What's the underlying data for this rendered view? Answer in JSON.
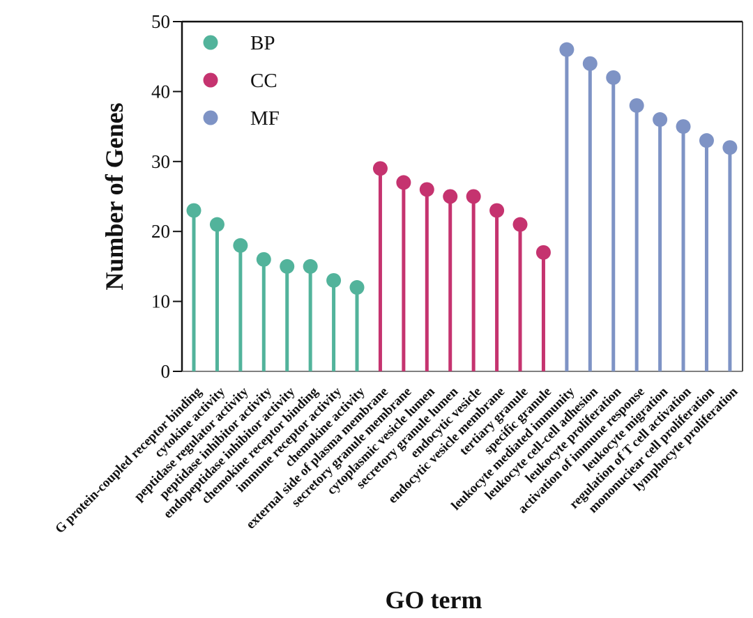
{
  "chart_data": {
    "type": "lollipop",
    "title": "",
    "xlabel": "GO term",
    "ylabel": "Number of Genes",
    "ylim": [
      0,
      50
    ],
    "yticks": [
      0,
      10,
      20,
      30,
      40,
      50
    ],
    "grid": false,
    "legend_position": "top-left",
    "categories": [
      "G protein-coupled receptor binding",
      "cytokine activity",
      "peptidase regulator activity",
      "peptidase inhibitor activity",
      "endopeptidase inhibitor activity",
      "chemokine receptor binding",
      "immune receptor activity",
      "chemokine activity",
      "external side of plasma membrane",
      "secretory granule membrane",
      "cytoplasmic vesicle lumen",
      "secretory granule lumen",
      "endocytic vesicle",
      "endocytic vesicle membrane",
      "tertiary granule",
      "specific granule",
      "leukocyte mediated immunity",
      "leukocyte cell-cell adhesion",
      "leukocyte proliferation",
      "activation of immune response",
      "leukocyte migration",
      "regulation of T cell activation",
      "mononuciear cell proliferation",
      "lymphocyte proliferation"
    ],
    "series": [
      {
        "name": "BP",
        "color": "#52b39b",
        "start_index": 0,
        "values": [
          23,
          21,
          18,
          16,
          15,
          15,
          13,
          12
        ]
      },
      {
        "name": "CC",
        "color": "#c5336f",
        "start_index": 8,
        "values": [
          29,
          27,
          26,
          25,
          25,
          23,
          21,
          17
        ]
      },
      {
        "name": "MF",
        "color": "#7e93c5",
        "start_index": 16,
        "values": [
          46,
          44,
          42,
          38,
          36,
          35,
          33,
          32
        ]
      }
    ]
  }
}
